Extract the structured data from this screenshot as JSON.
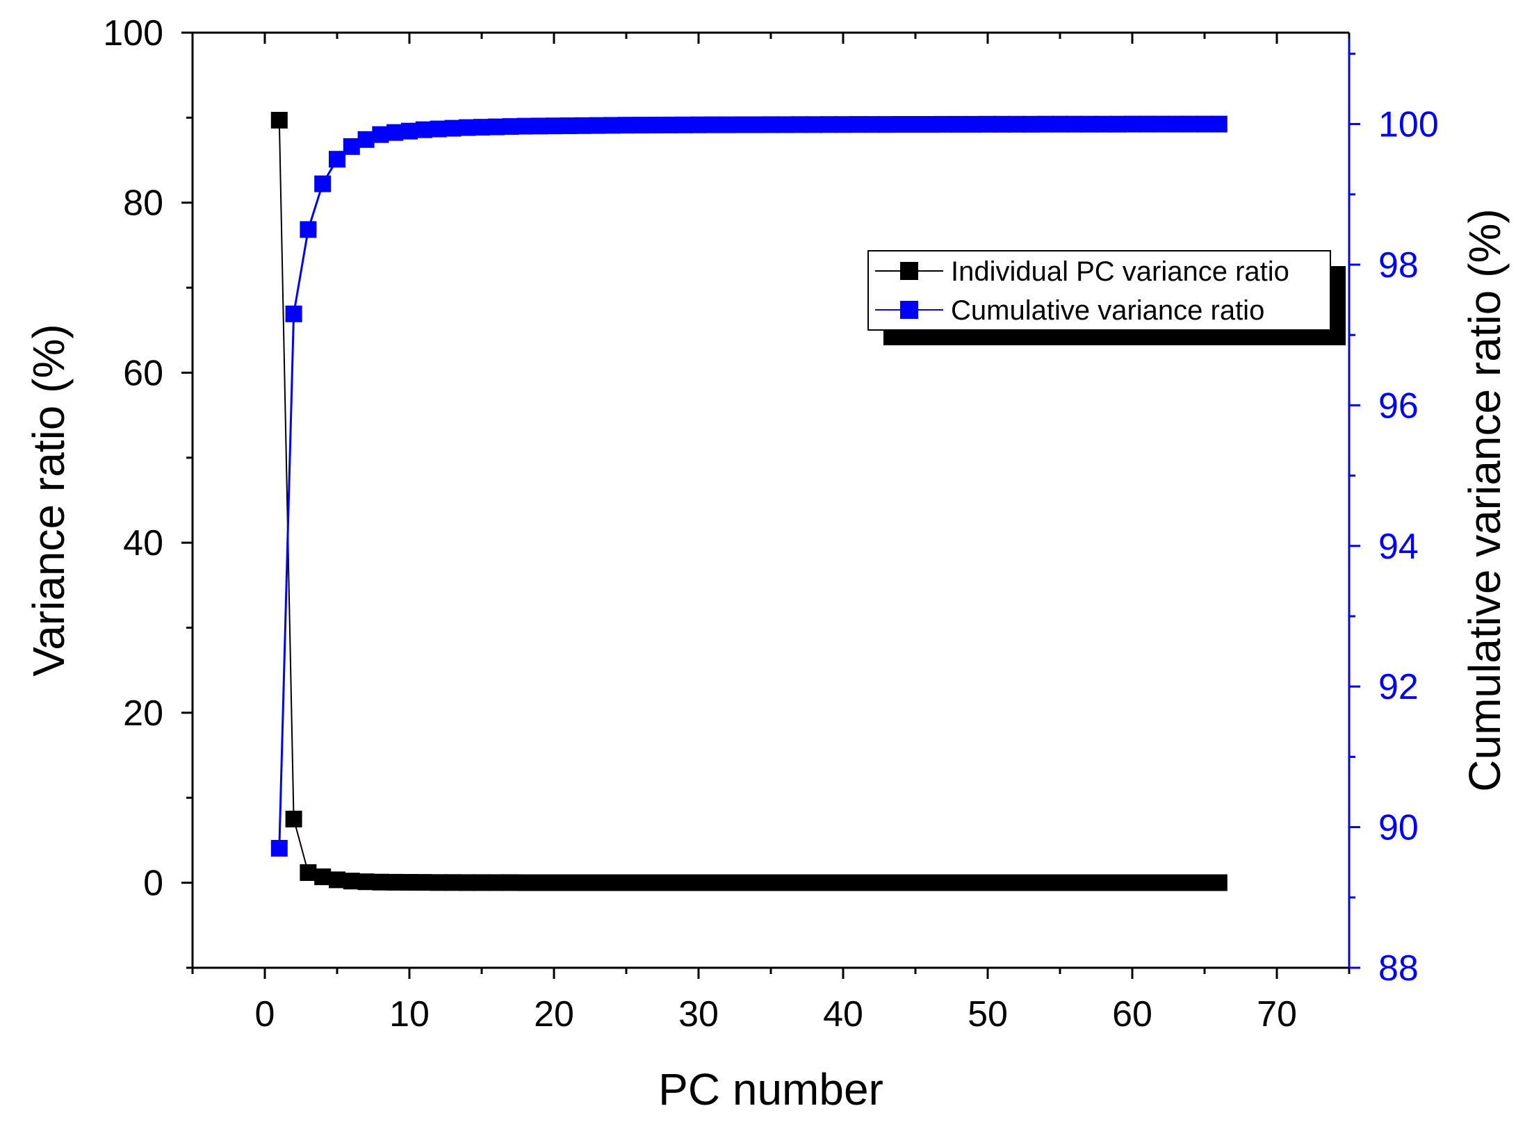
{
  "chart_data": {
    "type": "line",
    "title": "",
    "xlabel": "PC number",
    "ylabel": "Variance ratio (%)",
    "y2label": "Cumulative variance ratio (%)",
    "xlim": [
      -5,
      75
    ],
    "ylim": [
      -10,
      100
    ],
    "y2lim": [
      88,
      101.3
    ],
    "x_ticks": [
      0,
      10,
      20,
      30,
      40,
      50,
      60,
      70
    ],
    "y_ticks": [
      0,
      20,
      40,
      60,
      80,
      100
    ],
    "y2_ticks": [
      88,
      90,
      92,
      94,
      96,
      98,
      100
    ],
    "grid": false,
    "legend_position": "top-right",
    "colors": {
      "individual": "#000000",
      "cumulative": "#0000ff",
      "axis": "#000000",
      "right_axis": "#0000ff"
    },
    "x": [
      1,
      2,
      3,
      4,
      5,
      6,
      7,
      8,
      9,
      10,
      11,
      12,
      13,
      14,
      15,
      16,
      17,
      18,
      19,
      20,
      21,
      22,
      23,
      24,
      25,
      26,
      27,
      28,
      29,
      30,
      31,
      32,
      33,
      34,
      35,
      36,
      37,
      38,
      39,
      40,
      41,
      42,
      43,
      44,
      45,
      46,
      47,
      48,
      49,
      50,
      51,
      52,
      53,
      54,
      55,
      56,
      57,
      58,
      59,
      60,
      61,
      62,
      63,
      64,
      65,
      66
    ],
    "series": [
      {
        "name": "Individual PC variance ratio",
        "axis": "left",
        "values": [
          89.7,
          7.5,
          1.2,
          0.7,
          0.35,
          0.2,
          0.12,
          0.08,
          0.06,
          0.05,
          0.04,
          0.03,
          0.03,
          0.02,
          0.02,
          0.02,
          0.02,
          0.01,
          0.01,
          0.01,
          0.01,
          0.01,
          0.01,
          0.01,
          0.01,
          0.01,
          0.01,
          0.01,
          0.01,
          0.01,
          0.01,
          0.01,
          0.01,
          0.01,
          0.01,
          0.01,
          0.01,
          0.01,
          0.01,
          0.01,
          0.01,
          0.01,
          0.01,
          0.01,
          0.01,
          0.01,
          0.01,
          0.01,
          0.01,
          0.01,
          0.01,
          0.01,
          0.01,
          0.01,
          0.01,
          0.01,
          0.01,
          0.01,
          0.01,
          0.01,
          0.01,
          0.01,
          0.01,
          0.01,
          0.01,
          0.01
        ]
      },
      {
        "name": "Cumulative variance ratio",
        "axis": "right",
        "values": [
          89.7,
          97.3,
          98.5,
          99.15,
          99.5,
          99.68,
          99.78,
          99.85,
          99.88,
          99.9,
          99.92,
          99.93,
          99.94,
          99.95,
          99.955,
          99.96,
          99.965,
          99.97,
          99.972,
          99.974,
          99.976,
          99.978,
          99.98,
          99.982,
          99.984,
          99.985,
          99.986,
          99.987,
          99.988,
          99.989,
          99.99,
          99.99,
          99.991,
          99.991,
          99.992,
          99.992,
          99.993,
          99.993,
          99.994,
          99.994,
          99.995,
          99.995,
          99.995,
          99.996,
          99.996,
          99.996,
          99.997,
          99.997,
          99.997,
          99.998,
          99.998,
          99.998,
          99.998,
          99.999,
          99.999,
          99.999,
          99.999,
          99.999,
          99.999,
          100,
          100,
          100,
          100,
          100,
          100,
          100
        ]
      }
    ]
  }
}
